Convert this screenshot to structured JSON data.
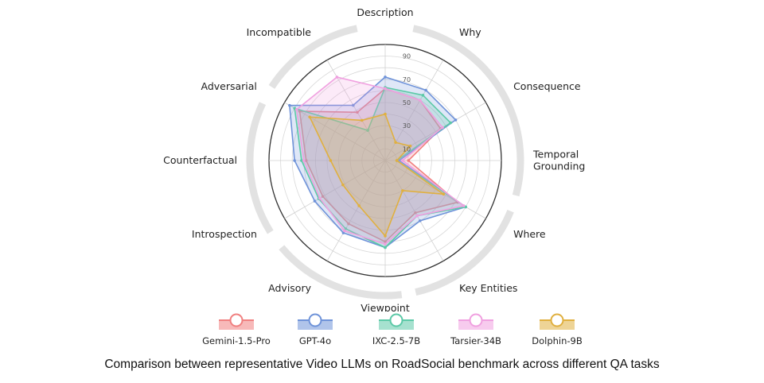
{
  "caption": "Comparison between representative Video LLMs on RoadSocial benchmark across different QA tasks",
  "chart_data": {
    "type": "radar",
    "axes": [
      "Description",
      "Why",
      "Consequence",
      "Temporal\nGrounding",
      "Where",
      "Key Entities",
      "Viewpoint",
      "Advisory",
      "Introspection",
      "Counterfactual",
      "Adversarial",
      "Incompatible"
    ],
    "tick_labels": [
      "10",
      "30",
      "50",
      "70",
      "90"
    ],
    "rmax": 100,
    "series": [
      {
        "name": "Gemini-1.5-Pro",
        "color": "#f08080",
        "values": [
          62,
          60,
          55,
          20,
          72,
          52,
          70,
          63,
          62,
          68,
          85,
          48
        ]
      },
      {
        "name": "GPT-4o",
        "color": "#6f93d9",
        "values": [
          72,
          70,
          70,
          12,
          80,
          60,
          75,
          72,
          70,
          78,
          95,
          55
        ]
      },
      {
        "name": "IXC-2.5-7B",
        "color": "#5cc9a7",
        "values": [
          63,
          65,
          65,
          10,
          80,
          55,
          75,
          68,
          66,
          72,
          90,
          30
        ]
      },
      {
        "name": "Tarsier-34B",
        "color": "#f0a0e0",
        "values": [
          62,
          60,
          57,
          15,
          78,
          55,
          72,
          70,
          65,
          70,
          88,
          83
        ]
      },
      {
        "name": "Dolphin-9B",
        "color": "#e0b040",
        "values": [
          40,
          18,
          25,
          10,
          58,
          30,
          65,
          45,
          42,
          47,
          75,
          40
        ]
      }
    ]
  }
}
